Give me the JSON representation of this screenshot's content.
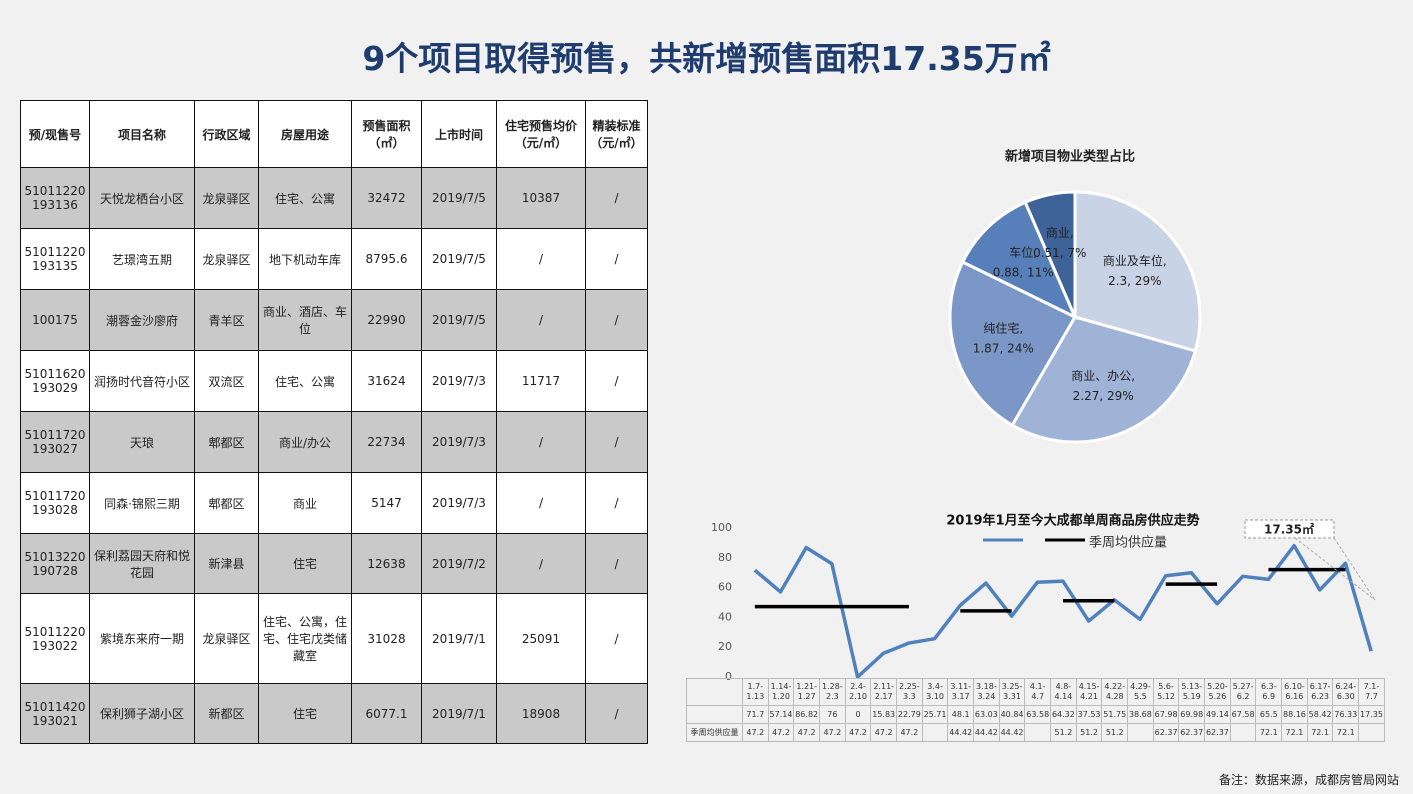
{
  "title": "9个项目取得预售，共新增预售面积17.35万㎡",
  "table": {
    "headers": [
      "预/现售号",
      "项目名称",
      "行政区域",
      "房屋用途",
      "预售面积（㎡）",
      "上市时间",
      "住宅预售均价（元/㎡）",
      "精装标准（元/㎡）"
    ],
    "rows": [
      [
        "51011220193136",
        "天悦龙栖台小区",
        "龙泉驿区",
        "住宅、公寓",
        "32472",
        "2019/7/5",
        "10387",
        "/"
      ],
      [
        "51011220193135",
        "艺璟湾五期",
        "龙泉驿区",
        "地下机动车库",
        "8795.6",
        "2019/7/5",
        "/",
        "/"
      ],
      [
        "100175",
        "潮蓉金沙廖府",
        "青羊区",
        "商业、酒店、车位",
        "22990",
        "2019/7/5",
        "/",
        "/"
      ],
      [
        "51011620193029",
        "润扬时代音符小区",
        "双流区",
        "住宅、公寓",
        "31624",
        "2019/7/3",
        "11717",
        "/"
      ],
      [
        "51011720193027",
        "天琅",
        "郫都区",
        "商业/办公",
        "22734",
        "2019/7/3",
        "/",
        "/"
      ],
      [
        "51011720193028",
        "同森·锦熙三期",
        "郫都区",
        "商业",
        "5147",
        "2019/7/3",
        "/",
        "/"
      ],
      [
        "51013220190728",
        "保利荔园天府和悦花园",
        "新津县",
        "住宅",
        "12638",
        "2019/7/2",
        "/",
        "/"
      ],
      [
        "51011220193022",
        "紫境东来府一期",
        "龙泉驿区",
        "住宅、公寓，住宅、住宅戊类储藏室",
        "31028",
        "2019/7/1",
        "25091",
        "/"
      ],
      [
        "51011420193021",
        "保利狮子湖小区",
        "新都区",
        "住宅",
        "6077.1",
        "2019/7/1",
        "18908",
        "/"
      ]
    ]
  },
  "chart_data": [
    {
      "type": "pie",
      "title": "新增项目物业类型占比",
      "categories": [
        "商业及车位,",
        "商业、办公,",
        "纯住宅,",
        "车位,",
        "商业,"
      ],
      "values": [
        2.3,
        2.27,
        1.87,
        0.88,
        0.51
      ],
      "value_labels": [
        "2.3, 29%",
        "2.27, 29%",
        "1.87, 24%",
        "0.88, 11%",
        "0.51, 7%"
      ],
      "colors": [
        "#c9d3e6",
        "#9fb3d7",
        "#7b97c7",
        "#5780bb",
        "#3d6399"
      ]
    },
    {
      "type": "line",
      "title": "2019年1月至今大成都单周商品房供应走势",
      "categories": [
        "1.7-1.13",
        "1.14-1.20",
        "1.21-1.27",
        "1.28-2.3",
        "2.4-2.10",
        "2.11-2.17",
        "2.25-3.3",
        "3.4-3.10",
        "3.11-3.17",
        "3.18-3.24",
        "3.25-3.31",
        "4.1-4.7",
        "4.8-4.14",
        "4.15-4.21",
        "4.22-4.28",
        "4.29-5.5",
        "5.6-5.12",
        "5.13-5.19",
        "5.20-5.26",
        "5.27-6.2",
        "6.3-6.9",
        "6.10-6.16",
        "6.17-6.23",
        "6.24-6.30",
        "7.1-7.7"
      ],
      "series": [
        {
          "color": "#4f81bd",
          "values": [
            71.7,
            57.14,
            86.82,
            76,
            0,
            15.83,
            22.79,
            25.71,
            48.1,
            63.03,
            40.84,
            63.58,
            64.32,
            37.53,
            51.75,
            38.68,
            67.98,
            69.98,
            49.14,
            67.58,
            65.5,
            88.16,
            58.42,
            76.33,
            17.35
          ]
        },
        {
          "name": "季周均供应量",
          "color": "#000000",
          "values": [
            47.2,
            47.2,
            47.2,
            47.2,
            47.2,
            47.2,
            47.2,
            null,
            44.42,
            44.42,
            44.42,
            null,
            51.2,
            51.2,
            51.2,
            null,
            62.37,
            62.37,
            62.37,
            null,
            72.1,
            72.1,
            72.1,
            72.1,
            null
          ]
        }
      ],
      "ylim": [
        0,
        100
      ],
      "yticks": [
        0,
        20,
        40,
        60,
        80,
        100
      ],
      "grid": false,
      "annotation": "17.35㎡"
    }
  ],
  "footer": "备注：数据来源，成都房管局网站"
}
